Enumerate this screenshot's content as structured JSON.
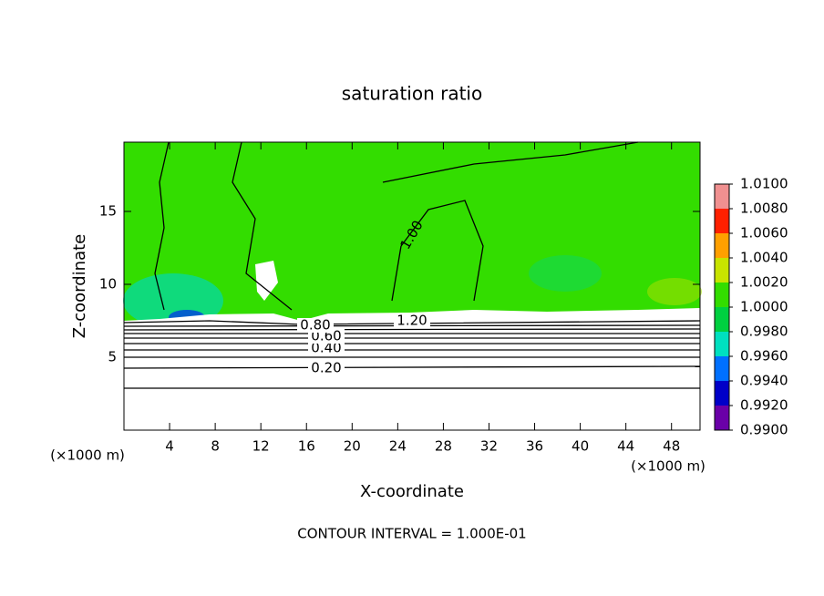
{
  "chart_data": {
    "type": "contour",
    "title": "saturation ratio",
    "x_label": "X-coordinate",
    "y_label": "Z-coordinate",
    "x_unit_label": "(×1000 m)",
    "y_unit_label": "(×1000 m)",
    "footnote": "CONTOUR INTERVAL = 1.000E-01",
    "xlim": [
      0,
      50.5
    ],
    "ylim": [
      0,
      19.75
    ],
    "xticks": [
      4,
      8,
      12,
      16,
      20,
      24,
      28,
      32,
      36,
      40,
      44,
      48
    ],
    "yticks": [
      5,
      10,
      15
    ],
    "contour_levels": [
      0.2,
      0.4,
      0.6,
      0.8,
      1.0,
      1.2
    ],
    "contour_labels": [
      "0.20",
      "0.40",
      "0.60",
      "0.80",
      "1.00",
      "1.20"
    ],
    "colorbar_lim": [
      0.99,
      1.01
    ],
    "colorbar_ticks": [
      {
        "value": 0.99,
        "label": "0.9900"
      },
      {
        "value": 0.992,
        "label": "0.9920"
      },
      {
        "value": 0.994,
        "label": "0.9940"
      },
      {
        "value": 0.996,
        "label": "0.9960"
      },
      {
        "value": 0.998,
        "label": "0.9980"
      },
      {
        "value": 1.0,
        "label": "1.0000"
      },
      {
        "value": 1.002,
        "label": "1.0020"
      },
      {
        "value": 1.004,
        "label": "1.0040"
      },
      {
        "value": 1.006,
        "label": "1.0060"
      },
      {
        "value": 1.008,
        "label": "1.0080"
      },
      {
        "value": 1.01,
        "label": "1.0100"
      }
    ],
    "colorbar_colors": [
      "#6a00a8",
      "#0000c8",
      "#0070ff",
      "#00e0c0",
      "#00d040",
      "#33dd00",
      "#c8e400",
      "#ffa000",
      "#ff2000",
      "#f09090"
    ]
  }
}
